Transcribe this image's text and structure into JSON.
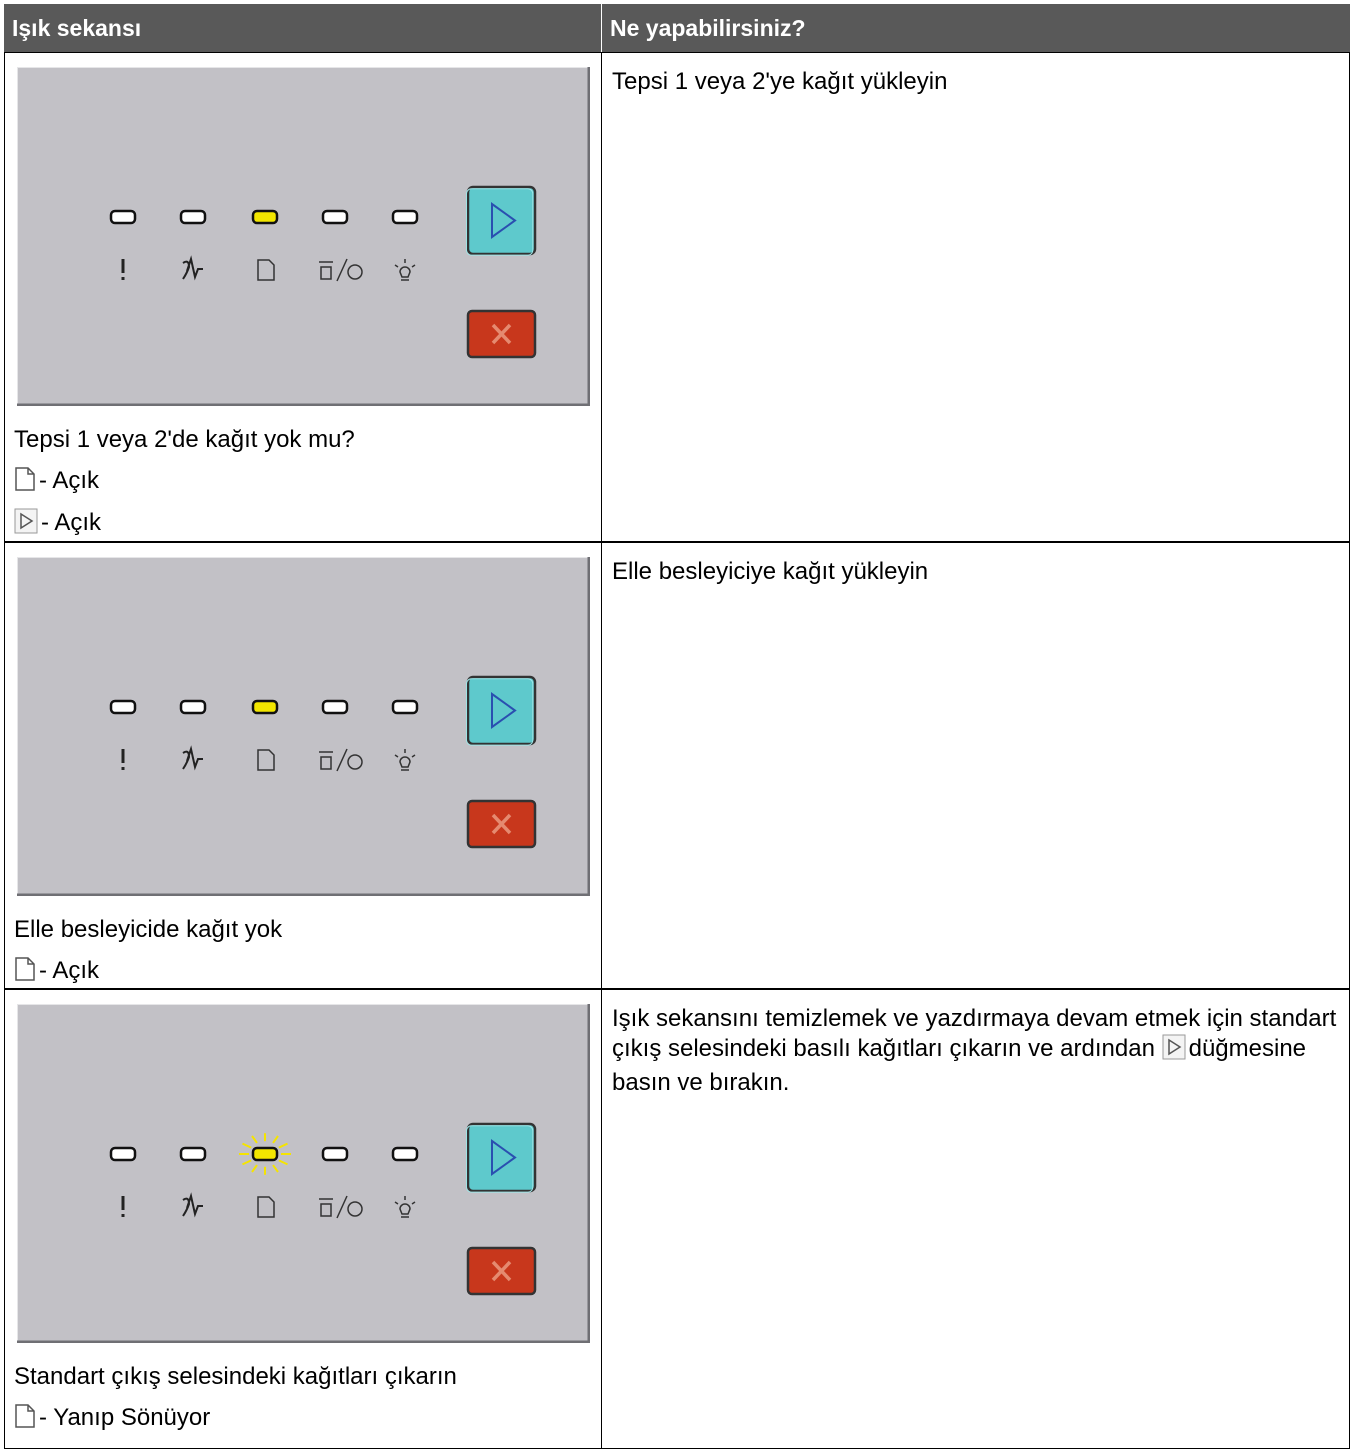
{
  "header": {
    "columns": [
      "Işık sekansı",
      "Ne yapabilirsiniz?"
    ]
  },
  "rows": [
    {
      "condition": "Tepsi 1 veya 2'de kağıt yok mu?",
      "indicators": [
        "- Açık",
        "- Açık"
      ],
      "action": [
        "Tepsi 1 veya 2'ye kağıt yükleyin"
      ]
    },
    {
      "condition": "Elle besleyicide kağıt yok",
      "indicators": [
        "- Açık"
      ],
      "action": [
        "Elle besleyiciye kağıt yükleyin"
      ]
    },
    {
      "condition": "Standart çıkış selesindeki kağıtları çıkarın",
      "indicators": [
        "- Yanıp Sönüyor"
      ],
      "action": [
        "Işık sekansını temizlemek ve yazdırmaya devam etmek için standart çıkış selesindeki basılı kağıtları çıkarın ve ardından",
        "düğmesine basın ve bırakın."
      ]
    }
  ]
}
